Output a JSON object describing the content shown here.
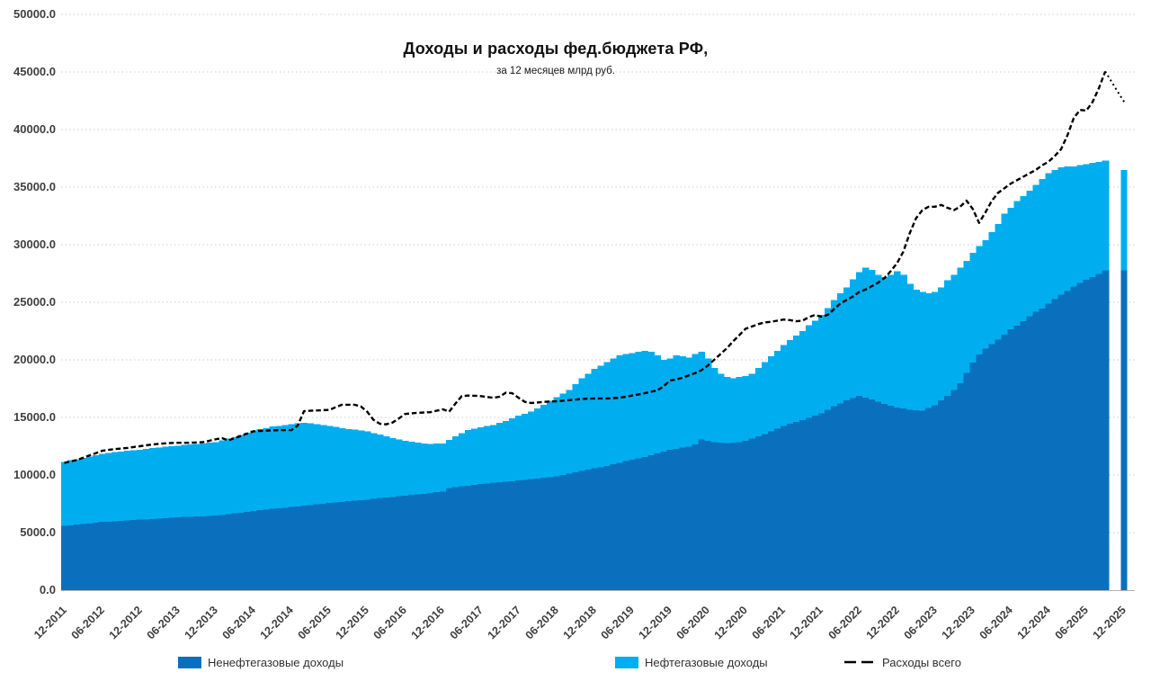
{
  "chart": {
    "title": "Доходы и расходы фед.бюджета РФ,",
    "subtitle": "за 12 месяцев млрд руб.",
    "background_color": "#ffffff",
    "gridline_color": "#cccccc",
    "axis_label_color": "#3f3f3f",
    "legend": [
      {
        "label": "Ненефтегазовые доходы",
        "color": "#0a70be",
        "type": "bar-swatch"
      },
      {
        "label": "Нефтегазовые доходы",
        "color": "#00aeef",
        "type": "bar-swatch"
      },
      {
        "label": "Расходы всего",
        "color": "#000000",
        "type": "dashed-line-sample"
      }
    ]
  },
  "chart_data": {
    "type": "stacked-bar+line",
    "title": "Доходы и расходы фед.бюджета РФ,",
    "subtitle": "за 12 месяцев млрд руб.",
    "x_start": "12-2011",
    "x_end": "12-2025",
    "x_frequency": "monthly",
    "x_tick_month_step": 6,
    "x_tick_labels": [
      "12-2011",
      "06-2012",
      "12-2012",
      "06-2013",
      "12-2013",
      "06-2014",
      "12-2014",
      "06-2015",
      "12-2015",
      "06-2016",
      "12-2016",
      "06-2017",
      "12-2017",
      "06-2018",
      "12-2018",
      "06-2019",
      "12-2019",
      "06-2020",
      "12-2020",
      "06-2021",
      "12-2021",
      "06-2022",
      "12-2022",
      "06-2023",
      "12-2023",
      "06-2024",
      "12-2024",
      "06-2025",
      "12-2025"
    ],
    "ylim": [
      0,
      50000
    ],
    "y_ticks": [
      0,
      5000,
      10000,
      15000,
      20000,
      25000,
      30000,
      35000,
      40000,
      45000,
      50000
    ],
    "y_tick_labels": [
      "0.0",
      "5000.0",
      "10000.0",
      "15000.0",
      "20000.0",
      "25000.0",
      "30000.0",
      "35000.0",
      "40000.0",
      "45000.0",
      "50000.0"
    ],
    "grid": "horizontal-dotted",
    "legend_position": "bottom",
    "series": [
      {
        "name": "Ненефтегазовые доходы",
        "role": "stack-bottom",
        "color": "#0a70be",
        "values": [
          5600,
          5660,
          5720,
          5780,
          5830,
          5890,
          5950,
          5980,
          6020,
          6050,
          6080,
          6120,
          6150,
          6180,
          6220,
          6250,
          6280,
          6320,
          6350,
          6380,
          6400,
          6430,
          6450,
          6480,
          6500,
          6570,
          6630,
          6700,
          6770,
          6830,
          6900,
          6970,
          7030,
          7100,
          7150,
          7200,
          7250,
          7310,
          7370,
          7430,
          7480,
          7540,
          7600,
          7650,
          7700,
          7750,
          7800,
          7850,
          7900,
          7960,
          8020,
          8080,
          8130,
          8190,
          8250,
          8300,
          8350,
          8400,
          8470,
          8530,
          8600,
          8900,
          8970,
          9040,
          9110,
          9180,
          9250,
          9300,
          9350,
          9400,
          9450,
          9500,
          9550,
          9610,
          9670,
          9730,
          9780,
          9840,
          9900,
          10030,
          10150,
          10280,
          10400,
          10500,
          10600,
          10700,
          10800,
          10950,
          11100,
          11250,
          11370,
          11480,
          11600,
          11750,
          11900,
          12050,
          12200,
          12300,
          12400,
          12500,
          12700,
          13100,
          13000,
          12900,
          12850,
          12800,
          12850,
          12900,
          13000,
          13200,
          13400,
          13600,
          13830,
          14070,
          14300,
          14470,
          14630,
          14800,
          15000,
          15200,
          15400,
          15700,
          16000,
          16250,
          16500,
          16700,
          16900,
          16750,
          16600,
          16400,
          16200,
          16050,
          15900,
          15800,
          15700,
          15650,
          15600,
          15850,
          16100,
          16500,
          16900,
          17400,
          18000,
          18900,
          19800,
          20500,
          21000,
          21400,
          21800,
          22200,
          22700,
          23000,
          23400,
          23800,
          24200,
          24500,
          24900,
          25300,
          25700,
          26000,
          26400,
          26700,
          27000,
          27200,
          27500,
          27800
        ]
      },
      {
        "name": "Нефтегазовые доходы",
        "role": "stack-top",
        "color": "#00aeef",
        "values": [
          5550,
          5610,
          5660,
          5720,
          5790,
          5840,
          5900,
          5940,
          5960,
          6000,
          6020,
          6030,
          6050,
          6090,
          6110,
          6150,
          6170,
          6180,
          6200,
          6220,
          6250,
          6270,
          6300,
          6320,
          6350,
          6430,
          6520,
          6600,
          6710,
          6840,
          6950,
          7000,
          7050,
          7100,
          7120,
          7130,
          7150,
          7170,
          7180,
          7050,
          6920,
          6790,
          6650,
          6520,
          6380,
          6250,
          6130,
          6020,
          5900,
          5690,
          5480,
          5270,
          5070,
          4890,
          4700,
          4580,
          4450,
          4350,
          4230,
          4190,
          4150,
          4150,
          4380,
          4590,
          4790,
          4850,
          4900,
          4950,
          5000,
          5130,
          5250,
          5430,
          5600,
          5720,
          5830,
          6070,
          6320,
          6590,
          6850,
          7050,
          7250,
          7620,
          8000,
          8300,
          8600,
          8800,
          9000,
          9150,
          9300,
          9250,
          9230,
          9220,
          9200,
          8950,
          8500,
          7950,
          7900,
          8100,
          7900,
          7700,
          7800,
          7600,
          7100,
          6400,
          5950,
          5700,
          5550,
          5600,
          5600,
          5600,
          5900,
          6200,
          6470,
          6730,
          7000,
          7230,
          7470,
          7700,
          8000,
          8200,
          8500,
          8800,
          9200,
          9550,
          9800,
          10300,
          10700,
          11250,
          11200,
          11000,
          11000,
          11350,
          11800,
          11600,
          10900,
          10450,
          10300,
          9950,
          9800,
          9800,
          10000,
          10000,
          10000,
          9700,
          9500,
          9400,
          9400,
          9700,
          10000,
          10500,
          10500,
          10800,
          10800,
          10900,
          11000,
          11200,
          11300,
          11200,
          11000,
          10800,
          10400,
          10200,
          10000,
          9900,
          9700,
          9500
        ]
      },
      {
        "name": "Расходы всего",
        "role": "line",
        "color": "#000000",
        "style": "dashed",
        "values": [
          11050,
          11180,
          11300,
          11500,
          11700,
          11900,
          12100,
          12180,
          12250,
          12300,
          12350,
          12430,
          12500,
          12580,
          12650,
          12700,
          12750,
          12780,
          12800,
          12800,
          12800,
          12830,
          12850,
          12980,
          13100,
          13200,
          13000,
          13200,
          13400,
          13600,
          13800,
          13830,
          13850,
          13880,
          13900,
          13900,
          13900,
          14300,
          15550,
          15580,
          15600,
          15630,
          15650,
          15880,
          16100,
          16100,
          16100,
          15950,
          15500,
          14800,
          14450,
          14400,
          14550,
          14900,
          15300,
          15350,
          15400,
          15430,
          15450,
          15580,
          15700,
          15500,
          16200,
          16850,
          16900,
          16880,
          16850,
          16780,
          16700,
          16800,
          17150,
          17100,
          16700,
          16350,
          16250,
          16300,
          16350,
          16380,
          16400,
          16450,
          16500,
          16550,
          16600,
          16630,
          16650,
          16650,
          16650,
          16680,
          16700,
          16800,
          16900,
          17000,
          17100,
          17230,
          17350,
          17700,
          18200,
          18300,
          18450,
          18650,
          18850,
          19100,
          19500,
          20000,
          20500,
          21000,
          21600,
          22150,
          22700,
          22900,
          23100,
          23250,
          23300,
          23400,
          23500,
          23450,
          23350,
          23400,
          23700,
          23900,
          23750,
          23900,
          24400,
          24900,
          25200,
          25500,
          25900,
          26100,
          26400,
          26700,
          27100,
          27700,
          28400,
          29400,
          31000,
          32300,
          33000,
          33300,
          33300,
          33450,
          33200,
          33000,
          33300,
          33830,
          33100,
          31900,
          32800,
          33800,
          34500,
          34900,
          35300,
          35600,
          35900,
          36200,
          36500,
          36900,
          37200,
          37700,
          38300,
          39500,
          41000,
          41700,
          41650,
          42400,
          43600,
          45050
        ]
      }
    ],
    "final_bar": {
      "label": "12-2025",
      "month_index": 168,
      "non_oilgas": 27800,
      "oilgas": 8700
    },
    "projection_line": {
      "style": "dotted",
      "points": [
        [
          165,
          45050
        ],
        [
          166,
          44150
        ],
        [
          167,
          43250
        ],
        [
          168,
          42400
        ]
      ]
    }
  }
}
